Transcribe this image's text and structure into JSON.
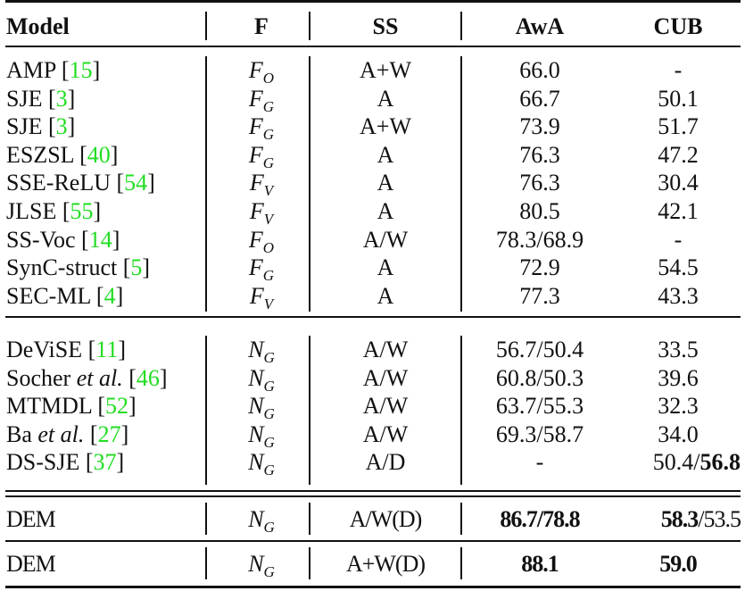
{
  "table": {
    "headers": {
      "model": "Model",
      "f": "F",
      "ss": "SS",
      "awa": "AwA",
      "cub": "CUB"
    },
    "group1": [
      {
        "name": "AMP",
        "cite": "15",
        "f_base": "F",
        "f_sub": "O",
        "ss": "A+W",
        "awa": "66.0",
        "cub": "-"
      },
      {
        "name": "SJE",
        "cite": "3",
        "f_base": "F",
        "f_sub": "G",
        "ss": "A",
        "awa": "66.7",
        "cub": "50.1"
      },
      {
        "name": "SJE",
        "cite": "3",
        "f_base": "F",
        "f_sub": "G",
        "ss": "A+W",
        "awa": "73.9",
        "cub": "51.7"
      },
      {
        "name": "ESZSL",
        "cite": "40",
        "f_base": "F",
        "f_sub": "G",
        "ss": "A",
        "awa": "76.3",
        "cub": "47.2"
      },
      {
        "name": "SSE-ReLU",
        "cite": "54",
        "f_base": "F",
        "f_sub": "V",
        "ss": "A",
        "awa": "76.3",
        "cub": "30.4"
      },
      {
        "name": "JLSE",
        "cite": "55",
        "f_base": "F",
        "f_sub": "V",
        "ss": "A",
        "awa": "80.5",
        "cub": "42.1"
      },
      {
        "name": "SS-Voc",
        "cite": "14",
        "f_base": "F",
        "f_sub": "O",
        "ss": "A/W",
        "awa": "78.3/68.9",
        "cub": "-"
      },
      {
        "name": "SynC-struct",
        "cite": "5",
        "f_base": "F",
        "f_sub": "G",
        "ss": "A",
        "awa": "72.9",
        "cub": "54.5"
      },
      {
        "name": "SEC-ML",
        "cite": "4",
        "f_base": "F",
        "f_sub": "V",
        "ss": "A",
        "awa": "77.3",
        "cub": "43.3"
      }
    ],
    "group2": [
      {
        "name": "DeViSE",
        "name_italic": "",
        "cite": "11",
        "f_base": "N",
        "f_sub": "G",
        "ss": "A/W",
        "awa": "56.7/50.4",
        "cub": "33.5"
      },
      {
        "name": "Socher ",
        "name_italic": "et al.",
        "cite": "46",
        "f_base": "N",
        "f_sub": "G",
        "ss": "A/W",
        "awa": "60.8/50.3",
        "cub": "39.6"
      },
      {
        "name": "MTMDL",
        "name_italic": "",
        "cite": "52",
        "f_base": "N",
        "f_sub": "G",
        "ss": "A/W",
        "awa": "63.7/55.3",
        "cub": "32.3"
      },
      {
        "name": "Ba ",
        "name_italic": "et al.",
        "cite": "27",
        "f_base": "N",
        "f_sub": "G",
        "ss": "A/W",
        "awa": "69.3/58.7",
        "cub": "34.0"
      },
      {
        "name": "DS-SJE",
        "name_italic": "",
        "cite": "37",
        "f_base": "N",
        "f_sub": "G",
        "ss": "A/D",
        "awa": "-",
        "cub_plain": "50.4/",
        "cub_bold": "56.8"
      }
    ],
    "dem1": {
      "name": "DEM",
      "f_base": "N",
      "f_sub": "G",
      "ss": "A/W(D)",
      "awa": "86.7/78.8",
      "cub_bold": "58.3",
      "cub_plain": "/53.5"
    },
    "dem2": {
      "name": "DEM",
      "f_base": "N",
      "f_sub": "G",
      "ss": "A+W(D)",
      "awa": "88.1",
      "cub": "59.0"
    }
  },
  "colors": {
    "citation": "#22dd22",
    "text": "#111111"
  }
}
